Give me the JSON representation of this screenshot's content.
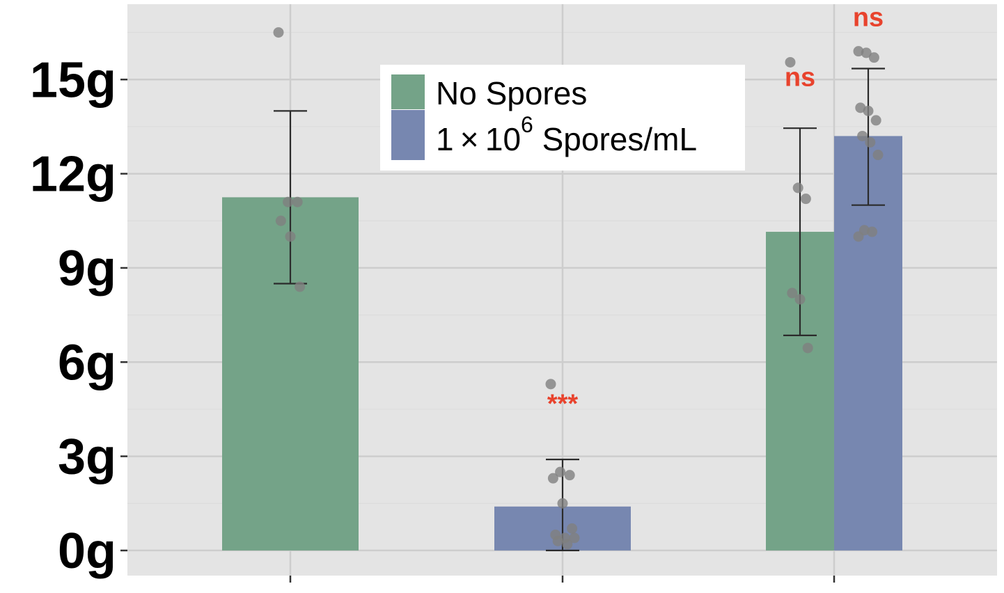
{
  "chart_data": {
    "type": "bar",
    "title": "",
    "xlabel": "",
    "ylabel": "",
    "ylim": [
      -0.8,
      17.4
    ],
    "y_ticks": [
      0,
      3,
      6,
      9,
      12,
      15
    ],
    "y_tick_labels": [
      "0g",
      "3g",
      "6g",
      "9g",
      "12g",
      "15g"
    ],
    "grid": true,
    "categories": [
      "",
      "",
      ""
    ],
    "legend": {
      "placement": "top-center",
      "entries": [
        {
          "label": "No Spores",
          "color": "#74a388"
        },
        {
          "label_prefix": "1 × 10",
          "label_exponent": "6",
          "label_suffix": " Spores/mL",
          "color": "#7787b0"
        }
      ]
    },
    "series": [
      {
        "color": "#74a388"
      },
      {
        "color": "#7787b0"
      }
    ],
    "bars": [
      {
        "category_index": 0,
        "series_index": 0,
        "slot": "full",
        "value": 11.25,
        "error_low": 8.5,
        "error_high": 14.0,
        "points": [
          16.5,
          11.1,
          11.1,
          10.5,
          10.0,
          8.4
        ]
      },
      {
        "category_index": 1,
        "series_index": 1,
        "slot": "full",
        "value": 1.4,
        "error_low": 0.0,
        "error_high": 2.9,
        "points": [
          5.3,
          2.5,
          2.4,
          2.3,
          1.5,
          0.7,
          0.5,
          0.4,
          0.4,
          0.3,
          0.2
        ]
      },
      {
        "category_index": 2,
        "series_index": 0,
        "slot": "left",
        "value": 10.15,
        "error_low": 6.85,
        "error_high": 13.45,
        "points": [
          15.55,
          11.55,
          11.2,
          8.2,
          8.0,
          6.45
        ]
      },
      {
        "category_index": 2,
        "series_index": 1,
        "slot": "right",
        "value": 13.2,
        "error_low": 11.0,
        "error_high": 15.35,
        "points": [
          15.9,
          15.85,
          15.7,
          14.1,
          14.0,
          13.7,
          13.2,
          13.0,
          12.6,
          10.2,
          10.15,
          10.0
        ]
      }
    ],
    "annotations": [
      {
        "text": "***",
        "category_index": 1,
        "slot": "full",
        "y": 4.4,
        "color": "#e8432d"
      },
      {
        "text": "ns",
        "category_index": 2,
        "slot": "left",
        "y": 14.8,
        "color": "#e8432d"
      },
      {
        "text": "ns",
        "category_index": 2,
        "slot": "right",
        "y": 16.7,
        "color": "#e8432d"
      }
    ]
  }
}
